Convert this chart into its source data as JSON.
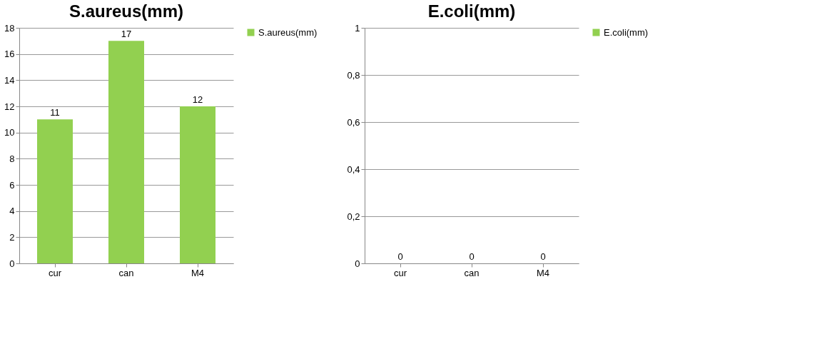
{
  "chart_data": [
    {
      "type": "bar",
      "title": "S.aureus(mm)",
      "categories": [
        "cur",
        "can",
        "M4"
      ],
      "series": [
        {
          "name": "S.aureus(mm)",
          "color": "#92d050",
          "values": [
            11,
            17,
            12
          ]
        }
      ],
      "ylim": [
        0,
        18
      ],
      "yticks": [
        0,
        2,
        4,
        6,
        8,
        10,
        12,
        14,
        16,
        18
      ],
      "grid": "y",
      "legend": "right",
      "data_labels": true
    },
    {
      "type": "bar",
      "title": "E.coli(mm)",
      "categories": [
        "cur",
        "can",
        "M4"
      ],
      "series": [
        {
          "name": "E.coli(mm)",
          "color": "#92d050",
          "values": [
            0,
            0,
            0
          ]
        }
      ],
      "ylim": [
        0,
        1
      ],
      "yticks": [
        0,
        {
          "value": 0.2,
          "label": "0,2"
        },
        {
          "value": 0.4,
          "label": "0,4"
        },
        {
          "value": 0.6,
          "label": "0,6"
        },
        {
          "value": 0.8,
          "label": "0,8"
        },
        1
      ],
      "grid": "y",
      "legend": "right",
      "data_labels": true
    }
  ]
}
